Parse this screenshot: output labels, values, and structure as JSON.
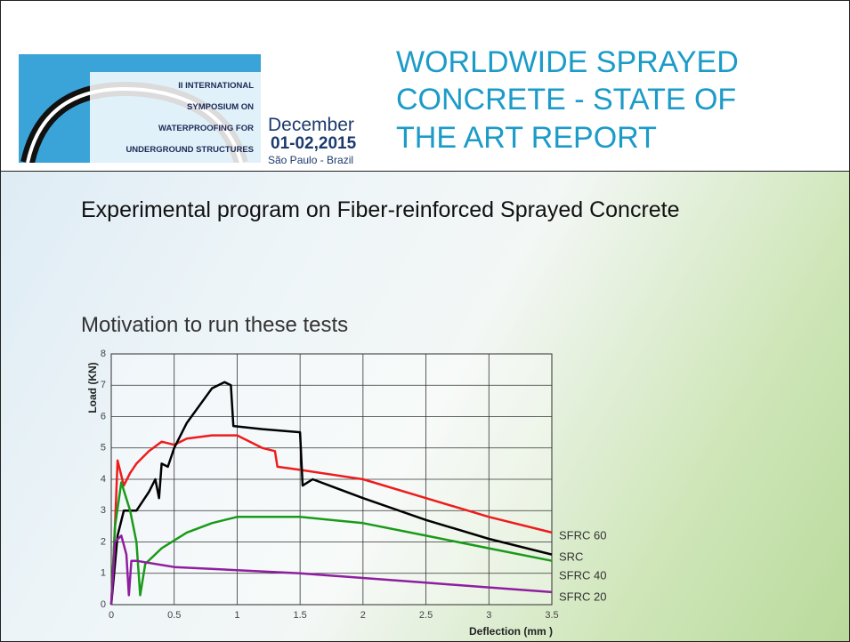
{
  "header": {
    "logo_lines": [
      "II INTERNATIONAL",
      "SYMPOSIUM ON",
      "WATERPROOFING FOR",
      "UNDERGROUND STRUCTURES"
    ],
    "date_month": "December",
    "date_days": "01-02,2015",
    "location": "São Paulo - Brazil",
    "title_lines": [
      "WORLDWIDE SPRAYED",
      "CONCRETE - STATE OF",
      "THE ART REPORT"
    ]
  },
  "slide": {
    "heading": "Experimental program on Fiber-reinforced Sprayed Concrete",
    "subheading": "Motivation to run these tests"
  },
  "chart_data": {
    "type": "line",
    "x_label": "Deflection (mm )",
    "y_label": "Load (KN)",
    "xlim": [
      0,
      3.5
    ],
    "xticks": [
      0,
      0.5,
      1,
      1.5,
      2,
      2.5,
      3,
      3.5
    ],
    "ylim": [
      0,
      8
    ],
    "yticks": [
      0,
      1,
      2,
      3,
      4,
      5,
      6,
      7,
      8
    ],
    "grid": true,
    "series": [
      {
        "name": "SFRC 60",
        "color": "#ee1c1c",
        "x": [
          0,
          0.03,
          0.05,
          0.1,
          0.15,
          0.2,
          0.3,
          0.4,
          0.5,
          0.6,
          0.8,
          1.0,
          1.2,
          1.3,
          1.32,
          1.5,
          2.0,
          2.5,
          3.0,
          3.5
        ],
        "values": [
          0,
          2.5,
          4.6,
          3.8,
          4.2,
          4.5,
          4.9,
          5.2,
          5.1,
          5.3,
          5.4,
          5.4,
          5.0,
          4.9,
          4.4,
          4.3,
          4.0,
          3.4,
          2.8,
          2.3
        ]
      },
      {
        "name": "SRC",
        "color": "#000000",
        "x": [
          0,
          0.05,
          0.1,
          0.2,
          0.3,
          0.35,
          0.38,
          0.4,
          0.45,
          0.5,
          0.6,
          0.8,
          0.9,
          0.95,
          0.97,
          1.2,
          1.5,
          1.52,
          1.6,
          2.0,
          2.5,
          3.0,
          3.5
        ],
        "values": [
          0,
          2.2,
          3.0,
          3.0,
          3.6,
          4.0,
          3.4,
          4.5,
          4.4,
          5.0,
          5.8,
          6.9,
          7.1,
          7.0,
          5.7,
          5.6,
          5.5,
          3.8,
          4.0,
          3.4,
          2.7,
          2.1,
          1.6
        ]
      },
      {
        "name": "SFRC 40",
        "color": "#1a9a1a",
        "x": [
          0,
          0.03,
          0.08,
          0.15,
          0.2,
          0.23,
          0.27,
          0.4,
          0.6,
          0.8,
          1.0,
          1.5,
          2.0,
          2.5,
          3.0,
          3.5
        ],
        "values": [
          0,
          2.5,
          3.9,
          3.0,
          2.0,
          0.3,
          1.3,
          1.8,
          2.3,
          2.6,
          2.8,
          2.8,
          2.6,
          2.2,
          1.8,
          1.4
        ]
      },
      {
        "name": "SFRC 20",
        "color": "#8e1ea0",
        "x": [
          0,
          0.03,
          0.08,
          0.12,
          0.14,
          0.16,
          0.2,
          0.5,
          1.0,
          1.5,
          2.0,
          2.5,
          3.0,
          3.5
        ],
        "values": [
          0,
          2.0,
          2.2,
          1.6,
          0.3,
          1.4,
          1.4,
          1.2,
          1.1,
          1.0,
          0.85,
          0.7,
          0.55,
          0.4
        ]
      }
    ]
  }
}
